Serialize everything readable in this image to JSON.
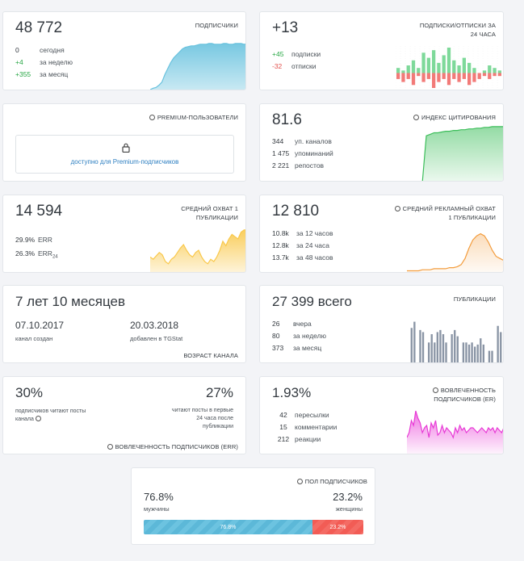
{
  "subscribers": {
    "value": "48 772",
    "label": "подписчики",
    "rows": [
      {
        "n": "0",
        "t": "сегодня",
        "color": "neutral"
      },
      {
        "n": "+4",
        "t": "за неделю",
        "color": "green"
      },
      {
        "n": "+355",
        "t": "за месяц",
        "color": "green"
      }
    ]
  },
  "subs_unsubs": {
    "value": "+13",
    "label": "подписки/отписки за 24 часа",
    "rows": [
      {
        "n": "+45",
        "t": "подписки",
        "color": "green"
      },
      {
        "n": "-32",
        "t": "отписки",
        "color": "red"
      }
    ]
  },
  "premium": {
    "label": "Premium-пользователи",
    "link": "доступно для Premium-подписчиков"
  },
  "citation": {
    "value": "81.6",
    "label": "индекс цитирования",
    "rows": [
      {
        "n": "344",
        "t": "уп. каналов"
      },
      {
        "n": "1 475",
        "t": "упоминаний"
      },
      {
        "n": "2 221",
        "t": "репостов"
      }
    ]
  },
  "avg_reach": {
    "value": "14 594",
    "label": "средний охват 1 публикации",
    "rows": [
      {
        "n": "29.9%",
        "t": "ERR",
        "sub": ""
      },
      {
        "n": "26.3%",
        "t": "ERR",
        "sub": "24"
      }
    ]
  },
  "ad_reach": {
    "value": "12 810",
    "label": "средний рекламный охват 1 публикации",
    "rows": [
      {
        "n": "10.8k",
        "t": "за 12 часов"
      },
      {
        "n": "12.8k",
        "t": "за 24 часа"
      },
      {
        "n": "13.7k",
        "t": "за 48 часов"
      }
    ]
  },
  "age": {
    "value": "7 лет 10 месяцев",
    "created_date": "07.10.2017",
    "created_label": "канал создан",
    "added_date": "20.03.2018",
    "added_label": "добавлен в TGStat",
    "label": "возраст канала"
  },
  "publications": {
    "value": "27 399",
    "suffix": "всего",
    "label": "публикации",
    "rows": [
      {
        "n": "26",
        "t": "вчера"
      },
      {
        "n": "80",
        "t": "за неделю"
      },
      {
        "n": "373",
        "t": "за месяц"
      }
    ]
  },
  "err_card": {
    "left_value": "30%",
    "left_text": "подписчиков читают посты канала",
    "right_value": "27%",
    "right_text": "читают посты в первые 24 часа после публикации",
    "label": "вовлеченность подписчиков (ERR)"
  },
  "er_card": {
    "value": "1.93%",
    "label": "вовлеченность подписчиков (ER)",
    "rows": [
      {
        "n": "42",
        "t": "пересылки"
      },
      {
        "n": "15",
        "t": "комментарии"
      },
      {
        "n": "212",
        "t": "реакции"
      }
    ]
  },
  "gender": {
    "label": "пол подписчиков",
    "male_value": "76.8%",
    "male_label": "мужчины",
    "female_value": "23.2%",
    "female_label": "женщины",
    "male_share": 76.8,
    "female_share": 23.2,
    "male_bar_label": "76.8%",
    "female_bar_label": "23.2%"
  },
  "colors": {
    "blue": "#69c2de",
    "green": "#3cbe5a",
    "yellow": "#f9c84a",
    "orange": "#f39c3c",
    "magenta": "#e83ad6",
    "gray_bar": "#8a95a5",
    "male_bar": "#5cb8d8",
    "female_bar": "#f25c55"
  },
  "chart_data": [
    {
      "type": "area",
      "name": "subscribers",
      "values": [
        2,
        4,
        5,
        8,
        12,
        22,
        30,
        38,
        44,
        48,
        52,
        56,
        58,
        59,
        60,
        60,
        61,
        62,
        62,
        62,
        63,
        63,
        62,
        62,
        62,
        63,
        63,
        62,
        62,
        63,
        63,
        63,
        62,
        63
      ]
    },
    {
      "type": "bar",
      "name": "subs_unsubs",
      "pos": [
        2,
        1,
        3,
        5,
        2,
        8,
        6,
        9,
        4,
        7,
        10,
        5,
        3,
        6,
        4,
        2,
        0,
        1,
        3,
        2,
        1
      ],
      "neg": [
        2,
        3,
        2,
        4,
        1,
        3,
        2,
        5,
        3,
        2,
        4,
        2,
        3,
        2,
        4,
        3,
        2,
        1,
        2,
        1,
        1
      ]
    },
    {
      "type": "area",
      "name": "citation",
      "values": [
        0,
        0,
        0,
        0,
        0,
        60,
        62,
        64,
        64,
        65,
        66,
        66,
        67,
        67,
        68,
        68,
        69,
        69,
        70,
        70,
        71,
        71,
        72,
        72,
        72,
        72
      ]
    },
    {
      "type": "area",
      "name": "avg_reach",
      "values": [
        14,
        12,
        15,
        18,
        16,
        10,
        8,
        12,
        14,
        18,
        22,
        25,
        20,
        16,
        14,
        18,
        20,
        14,
        10,
        8,
        12,
        10,
        14,
        20,
        28,
        24,
        30,
        34,
        32,
        30,
        36,
        38,
        38
      ]
    },
    {
      "type": "area",
      "name": "ad_reach",
      "values": [
        2,
        2,
        2,
        2,
        3,
        3,
        3,
        4,
        4,
        4,
        4,
        5,
        5,
        6,
        8,
        14,
        24,
        32,
        36,
        38,
        36,
        30,
        22,
        16,
        14,
        12
      ]
    },
    {
      "type": "bar",
      "name": "publications",
      "values": [
        34,
        40,
        0,
        32,
        30,
        0,
        20,
        28,
        20,
        30,
        32,
        28,
        20,
        0,
        28,
        32,
        26,
        0,
        20,
        20,
        18,
        20,
        16,
        18,
        24,
        18,
        0,
        12,
        12,
        0,
        36,
        30
      ]
    },
    {
      "type": "area",
      "name": "er",
      "values": [
        14,
        18,
        28,
        24,
        36,
        30,
        26,
        18,
        22,
        24,
        14,
        26,
        22,
        28,
        16,
        18,
        24,
        18,
        22,
        20,
        18,
        14,
        22,
        18,
        24,
        20,
        22,
        18,
        20,
        22,
        22,
        20,
        18,
        20,
        22,
        20,
        18,
        22,
        20,
        22,
        18,
        22,
        20,
        18,
        22
      ]
    }
  ]
}
